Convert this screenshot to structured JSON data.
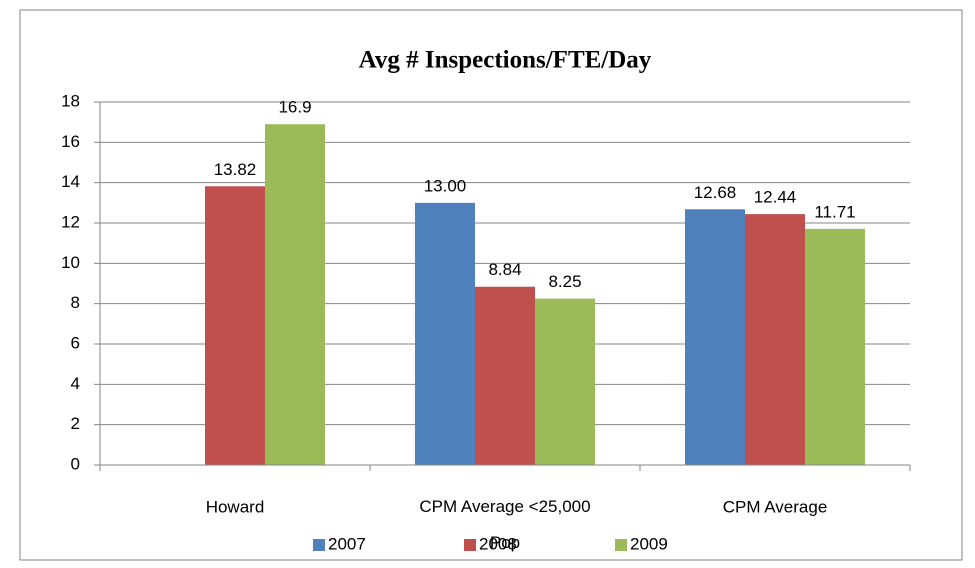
{
  "chart_data": {
    "type": "bar",
    "title": "Avg # Inspections/FTE/Day",
    "categories": [
      "Howard",
      "CPM Average <25,000 Pop",
      "CPM Average"
    ],
    "series": [
      {
        "name": "2007",
        "color": "#4f81bd",
        "values": [
          null,
          13.0,
          12.68
        ],
        "value_labels": [
          null,
          "13.00",
          "12.68"
        ]
      },
      {
        "name": "2008",
        "color": "#c0504d",
        "values": [
          13.82,
          8.84,
          12.44
        ]
      },
      {
        "name": "2009",
        "color": "#9bbb59",
        "values": [
          16.9,
          8.25,
          11.71
        ]
      }
    ],
    "ylim": [
      0,
      18
    ],
    "yticks": [
      0,
      2,
      4,
      6,
      8,
      10,
      12,
      14,
      16,
      18
    ],
    "grid": true,
    "legend": "bottom"
  }
}
